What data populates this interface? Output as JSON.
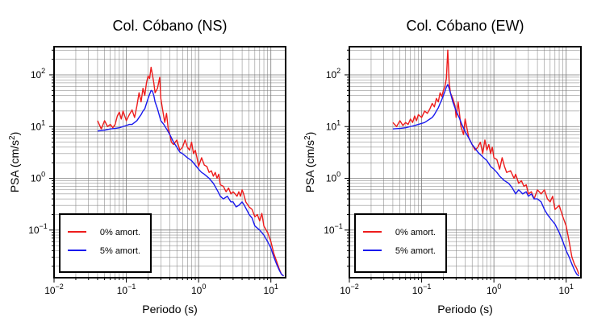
{
  "chart_data": [
    {
      "type": "line",
      "title": "Col. Cóbano (NS)",
      "xlabel": "Periodo (s)",
      "ylabel": "PSA (cm/s",
      "ylabel_sup": "2",
      "ylabel_close": ")",
      "xscale": "log",
      "yscale": "log",
      "xlim": [
        0.01,
        16
      ],
      "ylim": [
        0.012,
        350
      ],
      "grid": true,
      "legend_position": "bottom-left",
      "xticks": [
        {
          "base": "10",
          "exp": "−2",
          "value": 0.01
        },
        {
          "base": "10",
          "exp": "−1",
          "value": 0.1
        },
        {
          "base": "10",
          "exp": "0",
          "value": 1
        },
        {
          "base": "10",
          "exp": "1",
          "value": 10
        }
      ],
      "yticks": [
        {
          "base": "10",
          "exp": "−1",
          "value": 0.1
        },
        {
          "base": "10",
          "exp": "0",
          "value": 1
        },
        {
          "base": "10",
          "exp": "1",
          "value": 10
        },
        {
          "base": "10",
          "exp": "2",
          "value": 100
        }
      ],
      "series": [
        {
          "name": "0% amort.",
          "color": "#ee1c1c",
          "x": [
            0.04,
            0.045,
            0.05,
            0.055,
            0.06,
            0.065,
            0.07,
            0.075,
            0.08,
            0.085,
            0.09,
            0.1,
            0.11,
            0.12,
            0.13,
            0.14,
            0.15,
            0.16,
            0.17,
            0.18,
            0.19,
            0.2,
            0.21,
            0.22,
            0.23,
            0.24,
            0.25,
            0.27,
            0.29,
            0.3,
            0.32,
            0.34,
            0.36,
            0.38,
            0.4,
            0.42,
            0.45,
            0.5,
            0.55,
            0.6,
            0.65,
            0.7,
            0.75,
            0.8,
            0.85,
            0.9,
            0.95,
            1.0,
            1.1,
            1.2,
            1.3,
            1.4,
            1.5,
            1.6,
            1.7,
            1.8,
            1.9,
            2.0,
            2.2,
            2.4,
            2.6,
            2.8,
            3.0,
            3.2,
            3.4,
            3.6,
            3.8,
            4.0,
            4.2,
            4.5,
            5.0,
            5.5,
            6.0,
            6.5,
            7.0,
            7.5,
            8.0,
            9.0,
            10.0,
            11.0,
            12.0,
            13.0,
            14.0,
            15.0
          ],
          "y": [
            13,
            9,
            13,
            10,
            11,
            9.5,
            11,
            16,
            19,
            14,
            20,
            13,
            17,
            21,
            15,
            25,
            45,
            30,
            55,
            40,
            70,
            95,
            85,
            140,
            100,
            70,
            45,
            55,
            90,
            35,
            20,
            12,
            18,
            9,
            7,
            5,
            4.5,
            5.5,
            3.5,
            4,
            5.5,
            4,
            3.5,
            5,
            3,
            3.5,
            2.5,
            1.7,
            2.5,
            1.8,
            1.7,
            1.3,
            1.4,
            1.1,
            1.3,
            1.0,
            1.2,
            0.75,
            0.7,
            0.55,
            0.65,
            0.5,
            0.55,
            0.5,
            0.45,
            0.55,
            0.45,
            0.6,
            0.5,
            0.35,
            0.28,
            0.25,
            0.18,
            0.2,
            0.15,
            0.21,
            0.12,
            0.09,
            0.06,
            0.035,
            0.025,
            0.018,
            0.014,
            0.013
          ]
        },
        {
          "name": "5% amort.",
          "color": "#1a1aee",
          "x": [
            0.04,
            0.05,
            0.06,
            0.07,
            0.08,
            0.09,
            0.1,
            0.11,
            0.12,
            0.13,
            0.14,
            0.15,
            0.16,
            0.17,
            0.18,
            0.19,
            0.2,
            0.21,
            0.22,
            0.23,
            0.24,
            0.25,
            0.27,
            0.3,
            0.33,
            0.36,
            0.4,
            0.45,
            0.5,
            0.55,
            0.6,
            0.7,
            0.8,
            0.9,
            1.0,
            1.1,
            1.2,
            1.4,
            1.6,
            1.8,
            2.0,
            2.2,
            2.5,
            2.8,
            3.0,
            3.3,
            3.6,
            4.0,
            4.3,
            4.6,
            5.0,
            5.5,
            6.0,
            7.0,
            8.0,
            9.0,
            10.0,
            11.0,
            12.0,
            13.0,
            14.0,
            15.0
          ],
          "y": [
            8.2,
            8.5,
            9.0,
            9.2,
            9.5,
            10,
            10.5,
            11,
            11,
            12,
            13,
            15,
            17,
            20,
            22,
            28,
            35,
            42,
            50,
            48,
            40,
            30,
            22,
            13,
            11,
            9,
            7,
            5,
            4,
            3.2,
            3,
            2.5,
            2.2,
            1.8,
            1.5,
            1.3,
            1.2,
            1.0,
            0.8,
            0.6,
            0.45,
            0.4,
            0.45,
            0.35,
            0.35,
            0.28,
            0.3,
            0.35,
            0.3,
            0.25,
            0.2,
            0.17,
            0.12,
            0.1,
            0.08,
            0.06,
            0.045,
            0.03,
            0.022,
            0.017,
            0.014,
            0.013
          ]
        }
      ]
    },
    {
      "type": "line",
      "title": "Col. Cóbano (EW)",
      "xlabel": "Periodo (s)",
      "ylabel": "PSA (cm/s",
      "ylabel_sup": "2",
      "ylabel_close": ")",
      "xscale": "log",
      "yscale": "log",
      "xlim": [
        0.01,
        16
      ],
      "ylim": [
        0.012,
        350
      ],
      "grid": true,
      "legend_position": "bottom-left",
      "xticks": [
        {
          "base": "10",
          "exp": "−2",
          "value": 0.01
        },
        {
          "base": "10",
          "exp": "−1",
          "value": 0.1
        },
        {
          "base": "10",
          "exp": "0",
          "value": 1
        },
        {
          "base": "10",
          "exp": "1",
          "value": 10
        }
      ],
      "yticks": [
        {
          "base": "10",
          "exp": "−1",
          "value": 0.1
        },
        {
          "base": "10",
          "exp": "0",
          "value": 1
        },
        {
          "base": "10",
          "exp": "1",
          "value": 10
        },
        {
          "base": "10",
          "exp": "2",
          "value": 100
        }
      ],
      "series": [
        {
          "name": "0% amort.",
          "color": "#ee1c1c",
          "x": [
            0.04,
            0.045,
            0.05,
            0.055,
            0.06,
            0.065,
            0.07,
            0.075,
            0.08,
            0.085,
            0.09,
            0.1,
            0.11,
            0.12,
            0.13,
            0.14,
            0.15,
            0.16,
            0.17,
            0.18,
            0.19,
            0.2,
            0.21,
            0.22,
            0.23,
            0.24,
            0.25,
            0.27,
            0.29,
            0.3,
            0.32,
            0.35,
            0.38,
            0.4,
            0.45,
            0.5,
            0.55,
            0.6,
            0.65,
            0.7,
            0.75,
            0.8,
            0.85,
            0.9,
            0.95,
            1.0,
            1.1,
            1.2,
            1.3,
            1.4,
            1.5,
            1.7,
            1.9,
            2.0,
            2.2,
            2.4,
            2.6,
            2.8,
            3.0,
            3.3,
            3.6,
            4.0,
            4.5,
            5.0,
            5.5,
            6.0,
            6.5,
            7.0,
            8.0,
            9.0,
            10.0,
            11.0,
            12.0,
            13.0,
            14.0,
            15.0
          ],
          "y": [
            12,
            10,
            13,
            10.5,
            12,
            11,
            14,
            12,
            16,
            13,
            17,
            15,
            20,
            18,
            22,
            28,
            24,
            35,
            30,
            45,
            38,
            50,
            60,
            85,
            300,
            75,
            45,
            35,
            25,
            15,
            30,
            10,
            7,
            14,
            6,
            4.5,
            3.5,
            4,
            5,
            3,
            5.5,
            3.5,
            4.5,
            3,
            4,
            2.5,
            2.3,
            1.5,
            2.5,
            1.7,
            1.3,
            1.4,
            1.0,
            1.2,
            0.8,
            0.9,
            0.7,
            0.75,
            0.5,
            0.55,
            0.4,
            0.6,
            0.5,
            0.6,
            0.4,
            0.35,
            0.45,
            0.25,
            0.3,
            0.18,
            0.12,
            0.06,
            0.03,
            0.022,
            0.018,
            0.014
          ]
        },
        {
          "name": "5% amort.",
          "color": "#1a1aee",
          "x": [
            0.04,
            0.05,
            0.06,
            0.07,
            0.08,
            0.09,
            0.1,
            0.11,
            0.12,
            0.13,
            0.14,
            0.15,
            0.16,
            0.17,
            0.18,
            0.19,
            0.2,
            0.21,
            0.22,
            0.23,
            0.24,
            0.25,
            0.27,
            0.3,
            0.33,
            0.36,
            0.4,
            0.45,
            0.5,
            0.55,
            0.6,
            0.7,
            0.8,
            0.9,
            1.0,
            1.1,
            1.2,
            1.4,
            1.6,
            1.8,
            2.0,
            2.2,
            2.5,
            2.8,
            3.0,
            3.3,
            3.6,
            4.0,
            4.5,
            5.0,
            5.5,
            6.0,
            7.0,
            8.0,
            9.0,
            10.0,
            11.0,
            12.0,
            13.0,
            14.0,
            15.0
          ],
          "y": [
            9,
            9.2,
            9.5,
            10,
            10.5,
            11,
            11.5,
            12,
            13,
            14,
            15,
            17,
            20,
            23,
            28,
            33,
            40,
            48,
            58,
            65,
            55,
            45,
            30,
            20,
            15,
            11,
            8,
            6,
            4.5,
            3.8,
            3.2,
            2.6,
            2.2,
            1.7,
            1.5,
            1.3,
            1.1,
            0.9,
            0.8,
            0.65,
            0.5,
            0.6,
            0.5,
            0.55,
            0.45,
            0.5,
            0.4,
            0.4,
            0.35,
            0.25,
            0.2,
            0.17,
            0.13,
            0.09,
            0.06,
            0.04,
            0.03,
            0.022,
            0.017,
            0.014,
            0.013
          ]
        }
      ]
    }
  ]
}
